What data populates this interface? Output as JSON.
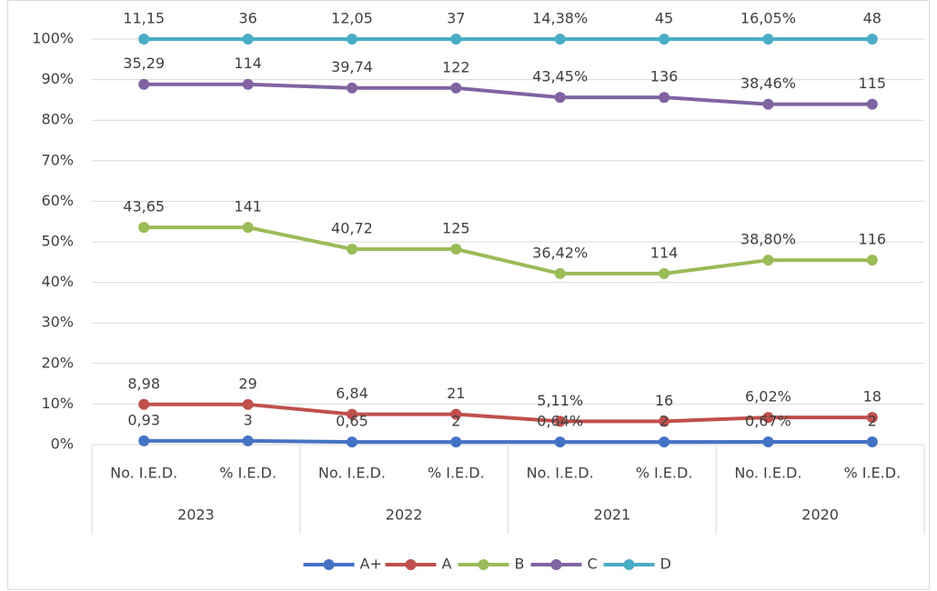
{
  "chart_data": {
    "type": "line",
    "stacking": "percent",
    "categories": [
      "No. I.E.D.",
      "% I.E.D.",
      "No. I.E.D.",
      "% I.E.D.",
      "No. I.E.D.",
      "% I.E.D.",
      "No. I.E.D.",
      "% I.E.D."
    ],
    "groups": [
      "2023",
      "2022",
      "2021",
      "2020"
    ],
    "ylim": [
      0,
      100
    ],
    "yticks": [
      {
        "value": 0,
        "label": "0%"
      },
      {
        "value": 10,
        "label": "10%"
      },
      {
        "value": 20,
        "label": "20%"
      },
      {
        "value": 30,
        "label": "30%"
      },
      {
        "value": 40,
        "label": "40%"
      },
      {
        "value": 50,
        "label": "50%"
      },
      {
        "value": 60,
        "label": "60%"
      },
      {
        "value": 70,
        "label": "70%"
      },
      {
        "value": 80,
        "label": "80%"
      },
      {
        "value": 90,
        "label": "90%"
      },
      {
        "value": 100,
        "label": "100%"
      }
    ],
    "grid": true,
    "legend": "bottom",
    "series": [
      {
        "name": "A+",
        "color": "#4472c4",
        "values": [
          0.93,
          3,
          0.65,
          2,
          0.64,
          2,
          0.67,
          2
        ],
        "value_labels": [
          "0,93",
          "3",
          "0,65",
          "2",
          "0,64%",
          "2",
          "0,67%",
          "2"
        ]
      },
      {
        "name": "A",
        "color": "#c0504d",
        "values": [
          8.98,
          29,
          6.84,
          21,
          5.11,
          16,
          6.02,
          18
        ],
        "value_labels": [
          "8,98",
          "29",
          "6,84",
          "21",
          "5,11%",
          "16",
          "6,02%",
          "18"
        ]
      },
      {
        "name": "B",
        "color": "#9bbb59",
        "values": [
          43.65,
          141,
          40.72,
          125,
          36.42,
          114,
          38.8,
          116
        ],
        "value_labels": [
          "43,65",
          "141",
          "40,72",
          "125",
          "36,42%",
          "114",
          "38,80%",
          "116"
        ]
      },
      {
        "name": "C",
        "color": "#8064a2",
        "values": [
          35.29,
          114,
          39.74,
          122,
          43.45,
          136,
          38.46,
          115
        ],
        "value_labels": [
          "35,29",
          "114",
          "39,74",
          "122",
          "43,45%",
          "136",
          "38,46%",
          "115"
        ]
      },
      {
        "name": "D",
        "color": "#4bacc6",
        "values": [
          11.15,
          36,
          12.05,
          37,
          14.38,
          45,
          16.05,
          48
        ],
        "value_labels": [
          "11,15",
          "36",
          "12,05",
          "37",
          "14,38%",
          "45",
          "16,05%",
          "48"
        ]
      }
    ]
  }
}
